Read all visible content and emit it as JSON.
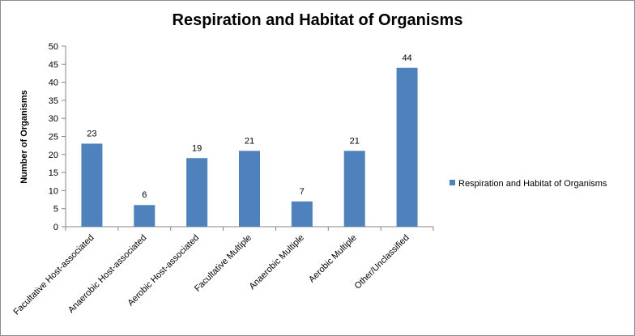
{
  "chart_data": {
    "type": "bar",
    "title": "Respiration and Habitat of Organisms",
    "xlabel": "",
    "ylabel": "Number of Organisms",
    "ylim": [
      0,
      50
    ],
    "ytick_step": 5,
    "grid": false,
    "legend": {
      "placement": "right",
      "entries": [
        "Respiration and Habitat of Organisms"
      ]
    },
    "categories": [
      "Facultative Host-associated",
      "Anaerobic Host-associated",
      "Aerobic Host-associated",
      "Facultative Multiple",
      "Anaerobic Multiple",
      "Aerobic Multiple",
      "Other/Unclassified"
    ],
    "series": [
      {
        "name": "Respiration and Habitat of Organisms",
        "values": [
          23,
          6,
          19,
          21,
          7,
          21,
          44
        ],
        "color": "#4f81bd"
      }
    ],
    "data_labels": true
  }
}
